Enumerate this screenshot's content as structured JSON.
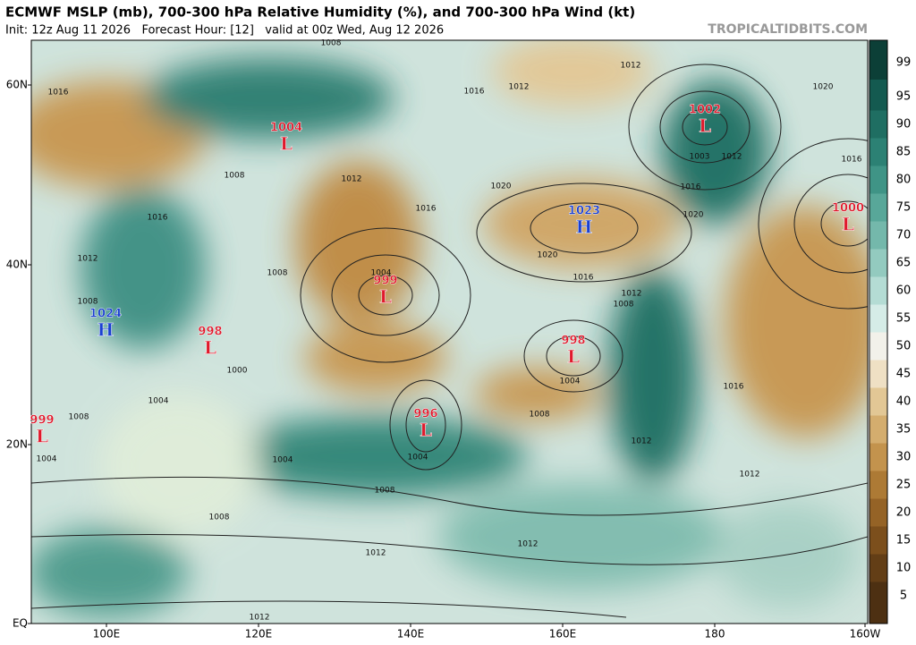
{
  "header": {
    "title": "ECMWF MSLP (mb), 700-300 hPa Relative Humidity (%), and 700-300 hPa Wind (kt)",
    "subtitle": "Init: 12z Aug 11 2026   Forecast Hour: [12]   valid at 00z Wed, Aug 12 2026",
    "watermark": "TROPICALTIDBITS.COM"
  },
  "map": {
    "lat_labels": [
      "60N",
      "40N",
      "20N",
      "EQ"
    ],
    "lon_labels": [
      "100E",
      "120E",
      "140E",
      "160E",
      "180",
      "160W"
    ],
    "systems": [
      {
        "value": "1004",
        "letter": "L"
      },
      {
        "value": "1002",
        "letter": "L"
      },
      {
        "value": "1023",
        "letter": "H"
      },
      {
        "value": "1000",
        "letter": "L"
      },
      {
        "value": "999",
        "letter": "L"
      },
      {
        "value": "1024",
        "letter": "H"
      },
      {
        "value": "998",
        "letter": "L"
      },
      {
        "value": "998",
        "letter": "L"
      },
      {
        "value": "996",
        "letter": "L"
      },
      {
        "value": "999",
        "letter": "L"
      }
    ],
    "isobar_labels": [
      "1016",
      "1012",
      "1020",
      "1016",
      "1012",
      "1008",
      "1008",
      "1012",
      "1016",
      "1020",
      "1020",
      "1016",
      "1020",
      "1016",
      "1012",
      "1008",
      "1004",
      "1008",
      "1016",
      "1012",
      "1008",
      "1000",
      "1004",
      "1008",
      "1004",
      "1008",
      "1012",
      "1016",
      "1012",
      "1004",
      "1004",
      "1008",
      "1008",
      "1012",
      "1012",
      "1012",
      "1004",
      "1016",
      "1003",
      "1012"
    ]
  },
  "colorbar": {
    "labels": [
      "99",
      "95",
      "90",
      "85",
      "80",
      "75",
      "70",
      "65",
      "60",
      "55",
      "50",
      "45",
      "40",
      "35",
      "30",
      "25",
      "20",
      "15",
      "10",
      "5"
    ],
    "colors": [
      "#0c3f37",
      "#145a50",
      "#1f6e62",
      "#2c8174",
      "#3f9486",
      "#58a799",
      "#74b8ab",
      "#93cabf",
      "#b4dcd4",
      "#d5ece7",
      "#f2f1ea",
      "#efe0c4",
      "#e2c795",
      "#d4ad6e",
      "#c3934d",
      "#ad7a35",
      "#956326",
      "#7c4f1c",
      "#633e16",
      "#4d3012"
    ]
  }
}
